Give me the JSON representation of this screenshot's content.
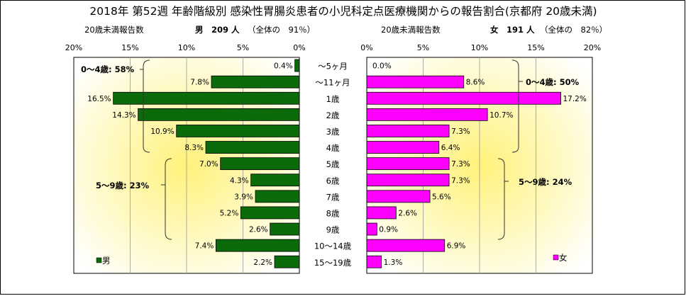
{
  "title": "2018年 第52週 年齢階級別 感染性胃腸炎患者の小児科定点医療機関からの報告割合(京都府 20歳未満)",
  "colors": {
    "male_bar": "#0b6b0b",
    "female_bar": "#ff00ff",
    "panel_gradient_center": "#fff27a",
    "panel_gradient_edge": "#ffffff"
  },
  "chart_data": {
    "type": "bar",
    "orientation": "horizontal",
    "categories": [
      "～5ヶ月",
      "～11ヶ月",
      "1歳",
      "2歳",
      "3歳",
      "4歳",
      "5歳",
      "6歳",
      "7歳",
      "8歳",
      "9歳",
      "10～14歳",
      "15～19歳"
    ],
    "x_ticks": [
      "20%",
      "15%",
      "10%",
      "5%",
      "0%"
    ],
    "x_ticks_right": [
      "0%",
      "5%",
      "10%",
      "15%",
      "20%"
    ],
    "xlim": [
      0,
      20
    ],
    "series": [
      {
        "name": "男",
        "header_left": "20歳未満報告数",
        "header_count": "男　209 人",
        "header_share": "（全体の　91％）",
        "values": [
          0.4,
          7.8,
          16.5,
          14.3,
          10.9,
          8.3,
          7.0,
          4.3,
          3.9,
          5.2,
          2.6,
          7.4,
          2.2
        ],
        "labels": [
          "0.4%",
          "7.8%",
          "16.5%",
          "14.3%",
          "10.9%",
          "8.3%",
          "7.0%",
          "4.3%",
          "3.9%",
          "5.2%",
          "2.6%",
          "7.4%",
          "2.2%"
        ],
        "annotations": [
          "0～4歳: 58%",
          "5～9歳: 23%"
        ],
        "legend": "男"
      },
      {
        "name": "女",
        "header_left": "20歳未満報告数",
        "header_count": "女　191 人",
        "header_share": "（全体の　82％）",
        "values": [
          0.0,
          8.6,
          17.2,
          10.7,
          7.3,
          6.4,
          7.3,
          7.3,
          5.6,
          2.6,
          0.9,
          6.9,
          1.3
        ],
        "labels": [
          "0.0%",
          "8.6%",
          "17.2%",
          "10.7%",
          "7.3%",
          "6.4%",
          "7.3%",
          "7.3%",
          "5.6%",
          "2.6%",
          "0.9%",
          "6.9%",
          "1.3%"
        ],
        "annotations": [
          "0～4歳: 50%",
          "5～9歳: 24%"
        ],
        "legend": "女"
      }
    ]
  }
}
